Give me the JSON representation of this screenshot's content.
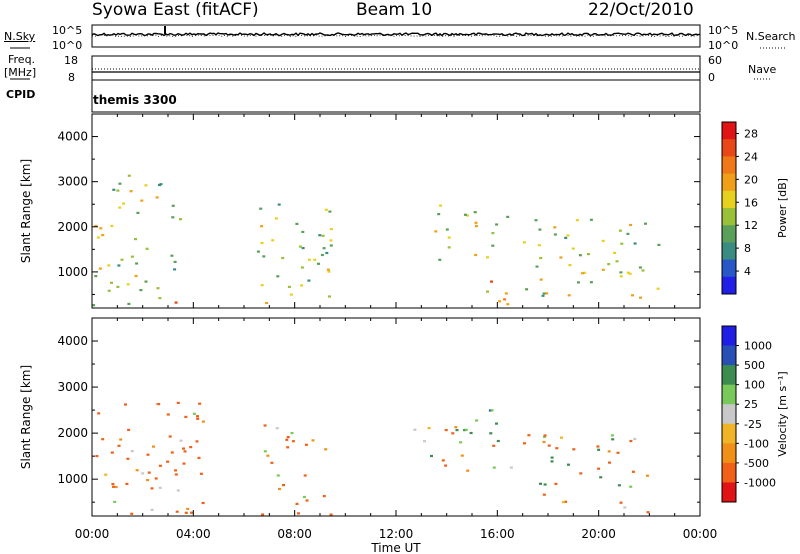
{
  "header": {
    "station": "Syowa East (fitACF)",
    "beam": "Beam 10",
    "date": "22/Oct/2010"
  },
  "panels": {
    "nsky": {
      "label": "N.Sky",
      "right_label": "N.Search",
      "left_ticks": [
        "10^5",
        "10^0"
      ],
      "right_ticks": [
        "10^5",
        "10^0"
      ]
    },
    "freq": {
      "label_line1": "Freq.",
      "label_line2": "[MHz]",
      "right_label": "Nave",
      "left_ticks": [
        "18",
        "8"
      ],
      "right_ticks": [
        "60",
        "0"
      ]
    },
    "cpid": {
      "label": "CPID",
      "value": "themis 3300"
    }
  },
  "colors": {
    "power": [
      "#1f1fe6",
      "#2858c8",
      "#3a8c80",
      "#5aa05a",
      "#9ac03a",
      "#e6d21e",
      "#f0a018",
      "#f07818",
      "#e84818",
      "#e01414"
    ],
    "velocity": [
      "#e01414",
      "#f06018",
      "#f09018",
      "#f0b428",
      "#c8c8c8",
      "#78c85a",
      "#3c8c50",
      "#2850b4",
      "#1e1ee6"
    ]
  },
  "chart_data": [
    {
      "type": "heatmap",
      "panel": "power",
      "xlabel": "Time UT",
      "ylabel": "Slant Range [km]",
      "x_ticks": [
        "00:00",
        "04:00",
        "08:00",
        "12:00",
        "16:00",
        "20:00",
        "00:00"
      ],
      "y_ticks": [
        1000,
        2000,
        3000,
        4000
      ],
      "ylim": [
        200,
        4500
      ],
      "colorbar_label": "Power [dB]",
      "colorbar_ticks": [
        "4",
        "8",
        "12",
        "16",
        "20",
        "24",
        "28"
      ],
      "colorbar_range": [
        0,
        30
      ],
      "echo_regions": [
        {
          "t0": 0.0,
          "t1": 3.5,
          "r0": 250,
          "r1": 3300,
          "level": 14
        },
        {
          "t0": 6.5,
          "t1": 9.5,
          "r0": 250,
          "r1": 2600,
          "level": 13
        },
        {
          "t0": 13.5,
          "t1": 16.5,
          "r0": 1200,
          "r1": 2600,
          "level": 15
        },
        {
          "t0": 15.5,
          "t1": 17.0,
          "r0": 300,
          "r1": 900,
          "level": 20
        },
        {
          "t0": 17.0,
          "t1": 22.5,
          "r0": 300,
          "r1": 2200,
          "level": 14
        },
        {
          "t0": 2.0,
          "t1": 4.0,
          "r0": 250,
          "r1": 450,
          "level": 26
        }
      ]
    },
    {
      "type": "heatmap",
      "panel": "velocity",
      "xlabel": "Time UT",
      "ylabel": "Slant Range [km]",
      "x_ticks": [
        "00:00",
        "04:00",
        "08:00",
        "12:00",
        "16:00",
        "20:00",
        "00:00"
      ],
      "y_ticks": [
        1000,
        2000,
        3000,
        4000
      ],
      "ylim": [
        200,
        4500
      ],
      "colorbar_label": "Velocity [m s⁻¹]",
      "colorbar_ticks": [
        "1000",
        "500",
        "100",
        "25",
        "-25",
        "-100",
        "-500",
        "-1000"
      ],
      "echo_regions": [
        {
          "t0": 0.0,
          "t1": 4.5,
          "r0": 250,
          "r1": 2800,
          "level": -200
        },
        {
          "t0": 6.5,
          "t1": 9.5,
          "r0": 250,
          "r1": 2400,
          "level": -150
        },
        {
          "t0": 12.5,
          "t1": 16.5,
          "r0": 1200,
          "r1": 2200,
          "level": 0
        },
        {
          "t0": 17.0,
          "t1": 22.0,
          "r0": 300,
          "r1": 2000,
          "level": -100
        },
        {
          "t0": 13.5,
          "t1": 16.0,
          "r0": 1800,
          "r1": 2600,
          "level": 150
        }
      ]
    }
  ]
}
